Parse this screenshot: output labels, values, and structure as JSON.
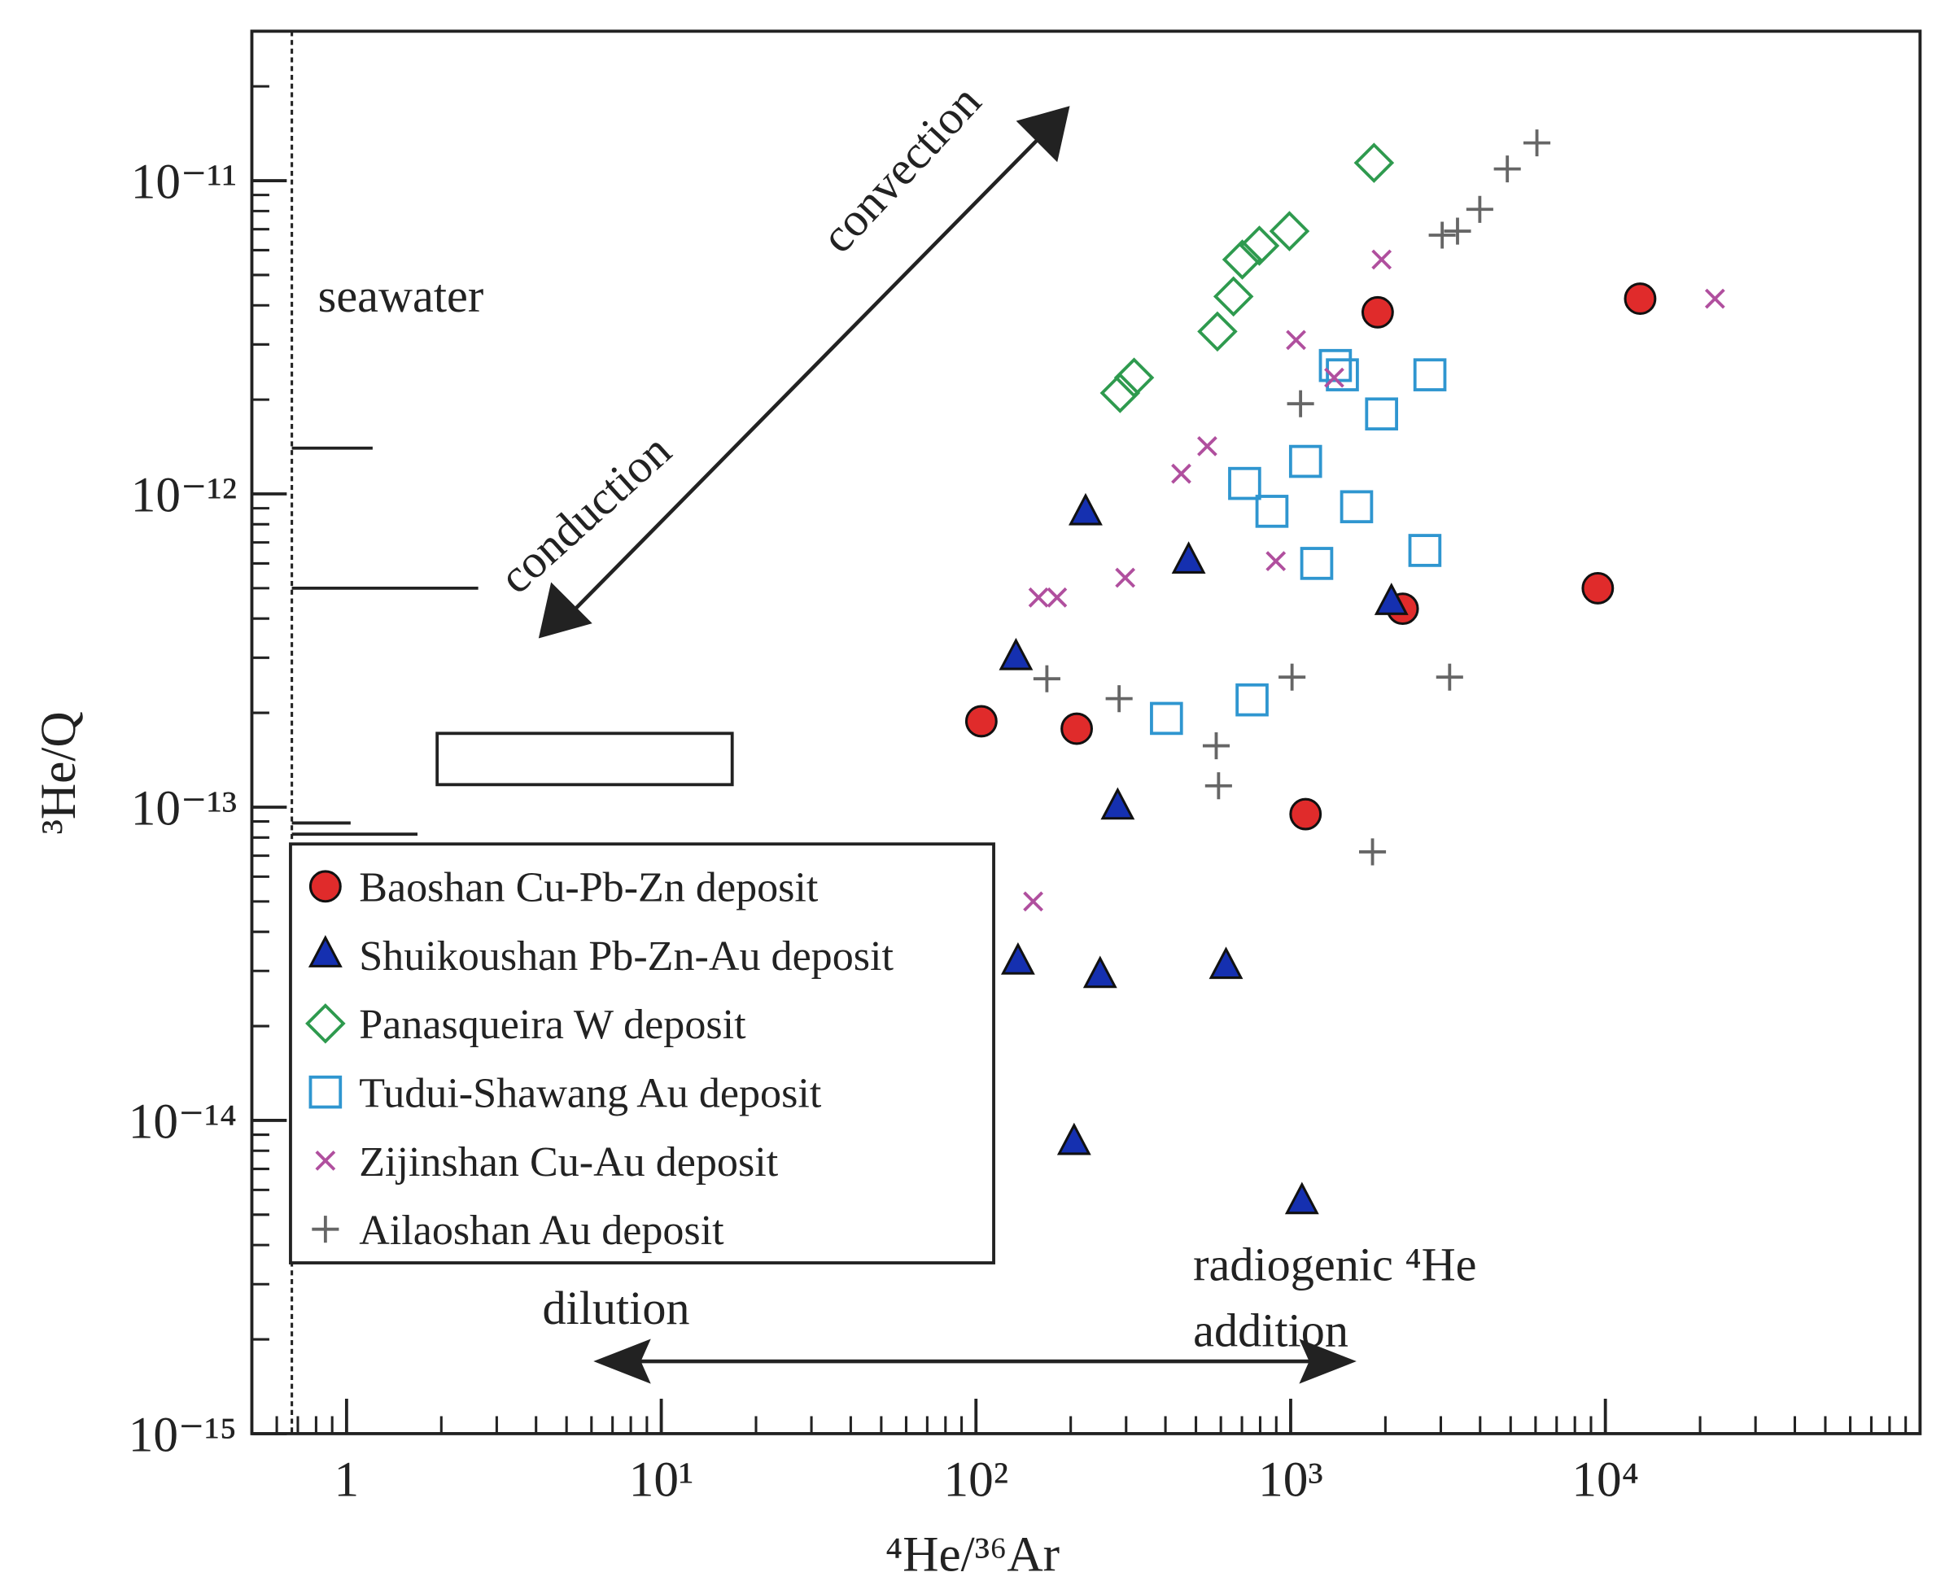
{
  "chart_data": {
    "type": "scatter",
    "xlabel": "⁴He/³⁶Ar",
    "ylabel": "³He/Q",
    "xlog": true,
    "ylog": true,
    "xlim": [
      0.5,
      100000
    ],
    "ylim": [
      1e-15,
      3e-11
    ],
    "xticks": [
      1,
      {
        "value": 10,
        "label": "10¹"
      },
      {
        "value": 100,
        "label": "10²"
      },
      {
        "value": 1000,
        "label": "10³"
      },
      {
        "value": 10000,
        "label": "10⁴"
      }
    ],
    "yticks": [
      {
        "value": 1e-15,
        "label": "10⁻¹⁵"
      },
      {
        "value": 1e-14,
        "label": "10⁻¹⁴"
      },
      {
        "value": 1e-13,
        "label": "10⁻¹³"
      },
      {
        "value": 1e-12,
        "label": "10⁻¹²"
      },
      {
        "value": 1e-11,
        "label": "10⁻¹¹"
      }
    ],
    "annotations": [
      "seawater",
      "convection",
      "conduction",
      "dilution",
      "radiogenic ⁴He",
      "addition"
    ],
    "seawater_x": 0.67,
    "reference_lines": [
      {
        "x": [
          0.67,
          1.21
        ],
        "y": 1.4e-12
      },
      {
        "x": [
          0.67,
          2.62
        ],
        "y": 5e-13
      },
      {
        "x": [
          0.67,
          1.03
        ],
        "y": 8.9e-14
      },
      {
        "x": [
          0.67,
          1.68
        ],
        "y": 8.2e-14
      }
    ],
    "reference_box": {
      "x": [
        1.94,
        16.8
      ],
      "y": [
        1.18e-13,
        1.72e-13
      ]
    },
    "legend_position": "lower left",
    "series": [
      {
        "name": "Baoshan Cu-Pb-Zn deposit",
        "marker": "circle",
        "color": "#e02b2b",
        "x": [
          104,
          209,
          1115,
          1890,
          2270,
          9460,
          12900
        ],
        "values": [
          1.88e-13,
          1.78e-13,
          9.5e-14,
          3.8e-12,
          4.3e-13,
          5e-13,
          4.2e-12
        ]
      },
      {
        "name": "Shuikoushan Pb-Zn-Au deposit",
        "marker": "triangle",
        "color": "#1530b0",
        "x": [
          223,
          474,
          134,
          2090,
          282,
          136,
          248,
          623,
          205,
          1086
        ],
        "values": [
          8.7e-13,
          6.1e-13,
          3e-13,
          4.5e-13,
          1e-13,
          3.2e-14,
          2.9e-14,
          3.1e-14,
          8.5e-15,
          5.5e-15
        ]
      },
      {
        "name": "Panasqueira W deposit",
        "marker": "diamond",
        "color": "#2e9a4e",
        "x": [
          1840,
          991,
          795,
          702,
          658,
          585,
          318,
          287
        ],
        "values": [
          1.14e-11,
          6.9e-12,
          6.2e-12,
          5.6e-12,
          4.27e-12,
          3.3e-12,
          2.35e-12,
          2.1e-12
        ]
      },
      {
        "name": "Tudui-Shawang Au deposit",
        "marker": "square",
        "color": "#2f96d0",
        "x": [
          1387,
          1460,
          2770,
          1945,
          1115,
          714,
          872,
          1620,
          2670,
          1210,
          754,
          403
        ],
        "values": [
          2.57e-12,
          2.4e-12,
          2.4e-12,
          1.8e-12,
          1.27e-12,
          1.08e-12,
          8.8e-13,
          9.1e-13,
          6.6e-13,
          6e-13,
          2.2e-13,
          1.92e-13
        ]
      },
      {
        "name": "Zijinshan Cu-Au deposit",
        "marker": "x",
        "color": "#b04f9e",
        "x": [
          1945,
          1040,
          1375,
          543,
          449,
          298,
          897,
          158,
          181,
          152,
          22300
        ],
        "values": [
          5.6e-12,
          3.1e-12,
          2.35e-12,
          1.42e-12,
          1.16e-12,
          5.4e-13,
          6.1e-13,
          4.67e-13,
          4.67e-13,
          5e-14,
          4.2e-12
        ]
      },
      {
        "name": "Ailaoshan Au deposit",
        "marker": "plus",
        "color": "#666666",
        "x": [
          6060,
          4880,
          3990,
          3390,
          3030,
          1075,
          168,
          285,
          580,
          590,
          1010,
          3200,
          1820
        ],
        "values": [
          1.32e-11,
          1.09e-11,
          8.1e-12,
          6.9e-12,
          6.7e-12,
          1.94e-12,
          2.57e-13,
          2.22e-13,
          1.57e-13,
          1.17e-13,
          2.6e-13,
          2.6e-13,
          7.2e-14
        ]
      }
    ]
  }
}
